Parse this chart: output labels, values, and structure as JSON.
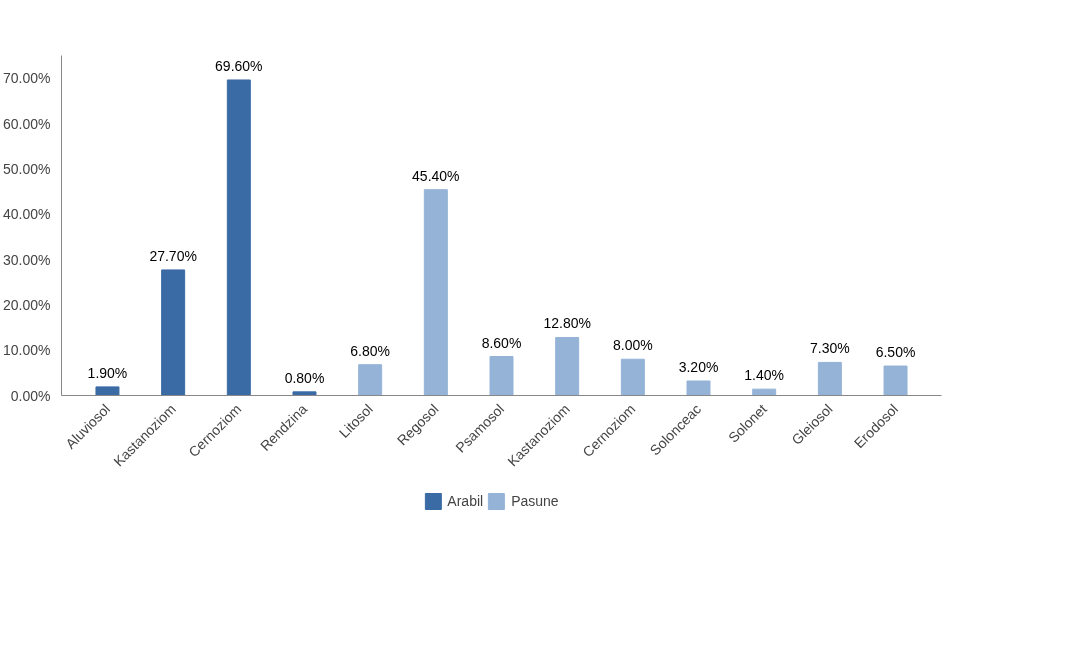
{
  "chart_data": {
    "type": "bar",
    "categories": [
      "Aluviosol",
      "Kastanoziom",
      "Cernoziom",
      "Rendzina",
      "Litosol",
      "Regosol",
      "Psamosol",
      "Kastanoziom",
      "Cernoziom",
      "Solonceac",
      "Solonet",
      "Gleiosol",
      "Erodosol"
    ],
    "series": [
      {
        "name": "Arabil",
        "color": "#3b6ba5",
        "values": [
          1.9,
          27.7,
          69.6,
          0.8,
          null,
          null,
          null,
          null,
          null,
          null,
          null,
          null,
          null
        ],
        "value_labels": [
          "1.90%",
          "27.70%",
          "69.60%",
          "0.80%",
          null,
          null,
          null,
          null,
          null,
          null,
          null,
          null,
          null
        ]
      },
      {
        "name": "Pasune",
        "color": "#95b3d7",
        "values": [
          null,
          null,
          null,
          null,
          6.8,
          45.4,
          8.6,
          12.8,
          8.0,
          3.2,
          1.4,
          7.3,
          6.5
        ],
        "value_labels": [
          null,
          null,
          null,
          null,
          "6.80%",
          "45.40%",
          "8.60%",
          "12.80%",
          "8.00%",
          "3.20%",
          "1.40%",
          "7.30%",
          "6.50%"
        ]
      }
    ],
    "ylim": [
      0,
      75
    ],
    "yticks": [
      {
        "value": 0,
        "label": "0.00%"
      },
      {
        "value": 10,
        "label": "10.00%"
      },
      {
        "value": 20,
        "label": "20.00%"
      },
      {
        "value": 30,
        "label": "30.00%"
      },
      {
        "value": 40,
        "label": "40.00%"
      },
      {
        "value": 50,
        "label": "50.00%"
      },
      {
        "value": 60,
        "label": "60.00%"
      },
      {
        "value": 70,
        "label": "70.00%"
      }
    ],
    "grid": false,
    "legend": "bottom"
  }
}
